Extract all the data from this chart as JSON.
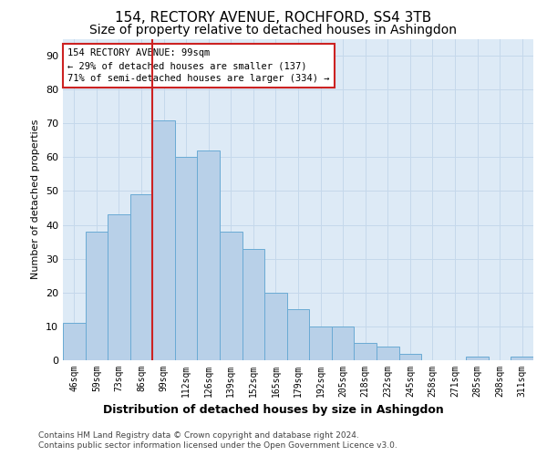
{
  "title": "154, RECTORY AVENUE, ROCHFORD, SS4 3TB",
  "subtitle": "Size of property relative to detached houses in Ashingdon",
  "xlabel": "Distribution of detached houses by size in Ashingdon",
  "ylabel": "Number of detached properties",
  "property_label": "154 RECTORY AVENUE: 99sqm",
  "annotation_line1": "← 29% of detached houses are smaller (137)",
  "annotation_line2": "71% of semi-detached houses are larger (334) →",
  "bin_labels": [
    "46sqm",
    "59sqm",
    "73sqm",
    "86sqm",
    "99sqm",
    "112sqm",
    "126sqm",
    "139sqm",
    "152sqm",
    "165sqm",
    "179sqm",
    "192sqm",
    "205sqm",
    "218sqm",
    "232sqm",
    "245sqm",
    "258sqm",
    "271sqm",
    "285sqm",
    "298sqm",
    "311sqm"
  ],
  "bar_values": [
    11,
    38,
    43,
    49,
    71,
    60,
    62,
    38,
    33,
    20,
    15,
    10,
    10,
    5,
    4,
    2,
    0,
    0,
    1,
    0,
    1
  ],
  "bar_color": "#b8d0e8",
  "bar_edge_color": "#6aaad4",
  "vline_color": "#cc2222",
  "annotation_box_color": "#cc2222",
  "ylim": [
    0,
    95
  ],
  "yticks": [
    0,
    10,
    20,
    30,
    40,
    50,
    60,
    70,
    80,
    90
  ],
  "grid_color": "#c5d8eb",
  "background_color": "#ddeaf6",
  "footer_line1": "Contains HM Land Registry data © Crown copyright and database right 2024.",
  "footer_line2": "Contains public sector information licensed under the Open Government Licence v3.0.",
  "title_fontsize": 11,
  "subtitle_fontsize": 10,
  "ylabel_fontsize": 8,
  "xlabel_fontsize": 9,
  "tick_fontsize": 7,
  "ytick_fontsize": 8,
  "annotation_fontsize": 7.5,
  "footer_fontsize": 6.5
}
